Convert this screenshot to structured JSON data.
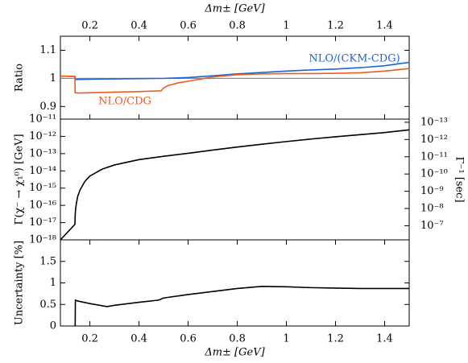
{
  "chart_data": [
    {
      "type": "line",
      "ylabel": "Ratio",
      "xlabel": "Δm± [GeV]",
      "xaxis_side": "top",
      "xlim": [
        0.08,
        1.5
      ],
      "xticks": [
        0.2,
        0.4,
        0.6,
        0.8,
        1,
        1.2,
        1.4
      ],
      "ylim": [
        0.855,
        1.15
      ],
      "yticks": [
        0.9,
        1,
        1.1
      ],
      "reference_line": 1,
      "series": [
        {
          "name": "NLO/(CKM-CDG)",
          "color": "#1f63d8",
          "x": [
            0.08,
            0.139,
            0.14,
            0.2,
            0.3,
            0.4,
            0.5,
            0.6,
            0.7,
            0.8,
            0.9,
            1.0,
            1.1,
            1.2,
            1.3,
            1.4,
            1.5
          ],
          "values": [
            1.008,
            1.007,
            0.996,
            0.997,
            0.998,
            0.999,
            1.0,
            1.003,
            1.009,
            1.016,
            1.021,
            1.026,
            1.03,
            1.033,
            1.038,
            1.045,
            1.057
          ]
        },
        {
          "name": "NLO/CDG",
          "color": "#f05a1e",
          "x": [
            0.08,
            0.139,
            0.14,
            0.15,
            0.2,
            0.3,
            0.4,
            0.49,
            0.5,
            0.52,
            0.56,
            0.6,
            0.7,
            0.8,
            0.9,
            1.0,
            1.1,
            1.2,
            1.3,
            1.4,
            1.5
          ],
          "values": [
            1.008,
            1.007,
            0.949,
            0.948,
            0.949,
            0.951,
            0.953,
            0.956,
            0.966,
            0.975,
            0.984,
            0.99,
            1.005,
            1.013,
            1.016,
            1.017,
            1.017,
            1.018,
            1.02,
            1.026,
            1.035
          ]
        }
      ]
    },
    {
      "type": "line",
      "ylabel": "Γ(χ⁻ → χ₁⁰) [GeV]",
      "y2label": "Γ⁻¹ [sec]",
      "log_y": true,
      "log_y2": true,
      "xlim": [
        0.08,
        1.5
      ],
      "ylim": [
        1e-18,
        1e-11
      ],
      "yticks": [
        {
          "value": 1e-18,
          "label": "10⁻¹⁸"
        },
        {
          "value": 1e-17,
          "label": "10⁻¹⁷"
        },
        {
          "value": 1e-16,
          "label": "10⁻¹⁶"
        },
        {
          "value": 1e-15,
          "label": "10⁻¹⁵"
        },
        {
          "value": 1e-14,
          "label": "10⁻¹⁴"
        },
        {
          "value": 1e-13,
          "label": "10⁻¹³"
        },
        {
          "value": 1e-12,
          "label": "10⁻¹²"
        },
        {
          "value": 1e-11,
          "label": "10⁻¹¹"
        }
      ],
      "y2lim": [
        6.58e-07,
        6.58e-14
      ],
      "y2ticks": [
        {
          "value": 1e-13,
          "label": "10⁻¹³"
        },
        {
          "value": 1e-12,
          "label": "10⁻¹²"
        },
        {
          "value": 1e-11,
          "label": "10⁻¹¹"
        },
        {
          "value": 1e-10,
          "label": "10⁻¹⁰"
        },
        {
          "value": 1e-09,
          "label": "10⁻⁹"
        },
        {
          "value": 1e-08,
          "label": "10⁻⁸"
        },
        {
          "value": 1e-07,
          "label": "10⁻⁷"
        }
      ],
      "series": [
        {
          "color": "#000000",
          "x": [
            0.08,
            0.139,
            0.14,
            0.142,
            0.145,
            0.15,
            0.16,
            0.18,
            0.2,
            0.25,
            0.3,
            0.4,
            0.5,
            0.6,
            0.7,
            0.8,
            0.9,
            1.0,
            1.1,
            1.2,
            1.3,
            1.4,
            1.5
          ],
          "values": [
            1e-18,
            7.9e-18,
            2.5e-17,
            6.3e-17,
            1.26e-16,
            3.2e-16,
            7.9e-16,
            2.5e-15,
            5e-15,
            1.26e-14,
            2.2e-14,
            4.5e-14,
            7e-14,
            1.05e-13,
            1.6e-13,
            2.4e-13,
            3.5e-13,
            5e-13,
            7e-13,
            9.5e-13,
            1.26e-12,
            1.66e-12,
            2.4e-12
          ]
        }
      ]
    },
    {
      "type": "line",
      "ylabel": "Uncertainty [%]",
      "xlabel": "Δm± [GeV]",
      "xaxis_side": "bottom",
      "xlim": [
        0.08,
        1.5
      ],
      "xticks": [
        0.2,
        0.4,
        0.6,
        0.8,
        1,
        1.2,
        1.4
      ],
      "ylim": [
        0,
        2
      ],
      "yticks": [
        0,
        0.5,
        1,
        1.5
      ],
      "series": [
        {
          "color": "#000000",
          "x": [
            0.14,
            0.141,
            0.15,
            0.2,
            0.27,
            0.3,
            0.4,
            0.48,
            0.5,
            0.6,
            0.7,
            0.8,
            0.9,
            1.0,
            1.1,
            1.2,
            1.3,
            1.4,
            1.5
          ],
          "values": [
            0,
            0.6,
            0.58,
            0.52,
            0.45,
            0.48,
            0.55,
            0.6,
            0.65,
            0.73,
            0.8,
            0.87,
            0.92,
            0.91,
            0.89,
            0.88,
            0.87,
            0.87,
            0.87
          ]
        }
      ]
    }
  ]
}
